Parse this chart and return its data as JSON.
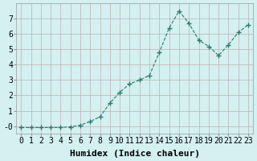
{
  "x": [
    0,
    1,
    2,
    3,
    4,
    5,
    6,
    7,
    8,
    9,
    10,
    11,
    12,
    13,
    14,
    15,
    16,
    17,
    18,
    19,
    20,
    21,
    22,
    23
  ],
  "y": [
    -0.1,
    -0.1,
    -0.1,
    -0.1,
    -0.1,
    -0.05,
    0.05,
    0.3,
    0.6,
    1.5,
    2.2,
    2.75,
    3.0,
    3.3,
    4.8,
    6.4,
    7.5,
    6.7,
    5.6,
    5.2,
    4.6,
    5.3,
    6.1,
    6.6
  ],
  "xlabel": "Humidex (Indice chaleur)",
  "background_color": "#d4f0f0",
  "grid_color": "#c0b0b0",
  "line_color": "#2d7a6e",
  "marker_color": "#2d7a6e",
  "ylim": [
    -0.5,
    8.0
  ],
  "xlim": [
    -0.5,
    23.5
  ],
  "yticks": [
    0,
    1,
    2,
    3,
    4,
    5,
    6,
    7
  ],
  "ytick_labels": [
    "-0",
    "1",
    "2",
    "3",
    "4",
    "5",
    "6",
    "7"
  ],
  "xtick_labels": [
    "0",
    "1",
    "2",
    "3",
    "4",
    "5",
    "6",
    "7",
    "8",
    "9",
    "10",
    "11",
    "12",
    "13",
    "14",
    "15",
    "16",
    "17",
    "18",
    "19",
    "20",
    "21",
    "22",
    "23"
  ],
  "xlabel_fontsize": 8,
  "tick_fontsize": 7
}
